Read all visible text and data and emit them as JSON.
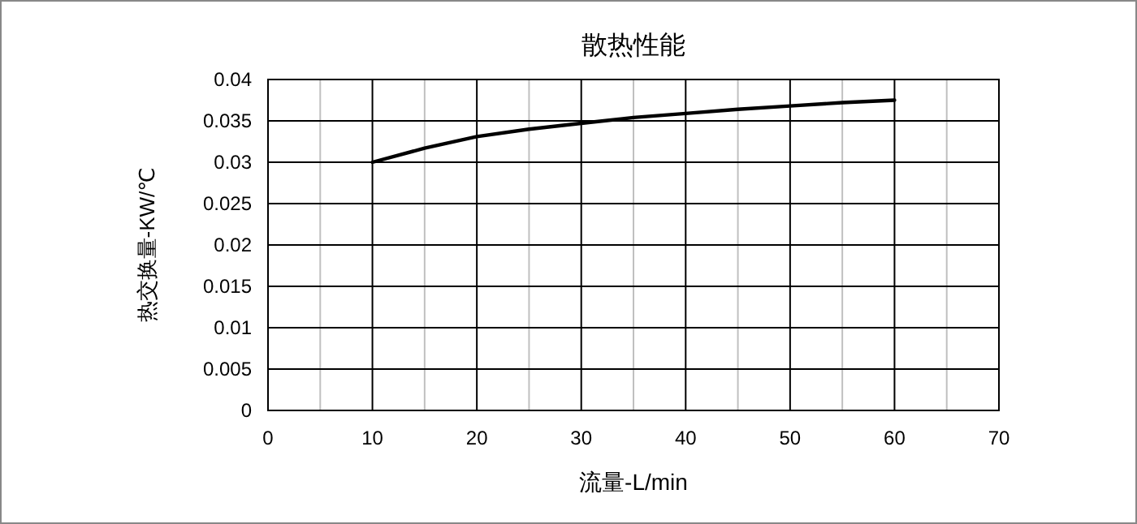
{
  "chart_data": {
    "type": "line",
    "title": "散热性能",
    "xlabel": "流量-L/min",
    "ylabel": "热交换量-KW/℃",
    "x": [
      10,
      15,
      20,
      25,
      30,
      35,
      40,
      45,
      50,
      55,
      60
    ],
    "series": [
      {
        "color": "#000000",
        "values": [
          0.03,
          0.0317,
          0.0331,
          0.034,
          0.0347,
          0.0354,
          0.0359,
          0.0364,
          0.0368,
          0.0372,
          0.0375
        ]
      }
    ],
    "xlim": [
      0,
      70
    ],
    "xticks": [
      0,
      {
        "value": 5,
        "label": null
      },
      10,
      {
        "value": 15,
        "label": null
      },
      20,
      {
        "value": 25,
        "label": null
      },
      30,
      {
        "value": 35,
        "label": null
      },
      40,
      {
        "value": 45,
        "label": null
      },
      50,
      {
        "value": 55,
        "label": null
      },
      60,
      {
        "value": 65,
        "label": null
      },
      70
    ],
    "ylim": [
      0,
      0.04
    ],
    "yticks": [
      0,
      0.005,
      0.01,
      0.015,
      0.02,
      0.025,
      0.03,
      0.035,
      0.04
    ],
    "grid": true,
    "marker": "none",
    "line_style": "solid"
  }
}
